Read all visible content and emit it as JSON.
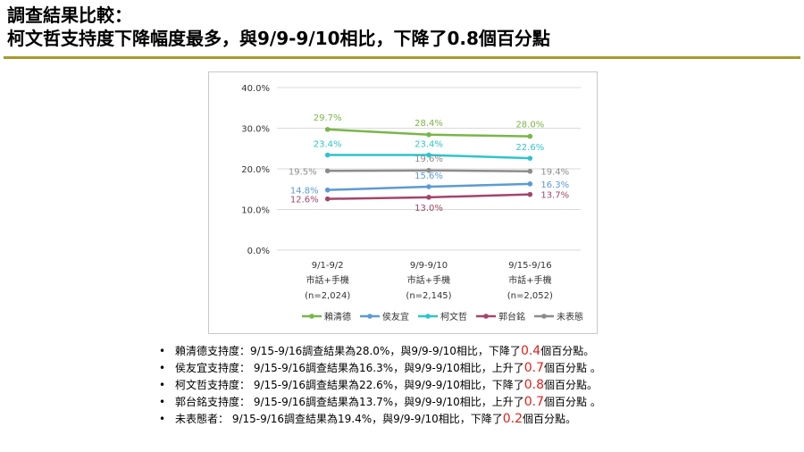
{
  "header": {
    "title_line1": "調查結果比較：",
    "title_line2": "柯文哲支持度下降幅度最多，與9/9-9/10相比，下降了0.8個百分點"
  },
  "theme": {
    "rule_color": "#a89a2e",
    "highlight_color": "#e0201a"
  },
  "chart_data": {
    "type": "line",
    "categories": [
      [
        "9/1-9/2",
        "市話+手機",
        "(n=2,024)"
      ],
      [
        "9/9-9/10",
        "市話+手機",
        "(n=2,145)"
      ],
      [
        "9/15-9/16",
        "市話+手機",
        "(n=2,052)"
      ]
    ],
    "ylim": [
      0,
      40
    ],
    "yticks": [
      "0.0%",
      "10.0%",
      "20.0%",
      "30.0%",
      "40.0%"
    ],
    "grid": true,
    "legend_position": "bottom",
    "series": [
      {
        "name": "賴清德",
        "color": "#7ab648",
        "values": [
          29.7,
          28.4,
          28.0
        ],
        "labels": [
          "29.7%",
          "28.4%",
          "28.0%"
        ]
      },
      {
        "name": "侯友宜",
        "color": "#5b9bd5",
        "values": [
          14.8,
          15.6,
          16.3
        ],
        "labels": [
          "14.8%",
          "15.6%",
          "16.3%"
        ]
      },
      {
        "name": "柯文哲",
        "color": "#2fc4cc",
        "values": [
          23.4,
          23.4,
          22.6
        ],
        "labels": [
          "23.4%",
          "23.4%",
          "22.6%"
        ]
      },
      {
        "name": "郭台銘",
        "color": "#a3456b",
        "values": [
          12.6,
          13.0,
          13.7
        ],
        "labels": [
          "12.6%",
          "13.0%",
          "13.7%"
        ]
      },
      {
        "name": "未表態",
        "color": "#8c8c8c",
        "values": [
          19.5,
          19.6,
          19.4
        ],
        "labels": [
          "19.5%",
          "19.6%",
          "19.4%"
        ]
      }
    ]
  },
  "bullets": [
    {
      "prefix": "賴清德支持度：9/15-9/16調查結果為28.0%，與9/9-9/10相比，下降了",
      "highlight": "0.4",
      "suffix": "個百分點。"
    },
    {
      "prefix": "侯友宜支持度： 9/15-9/16調查結果為16.3%，與9/9-9/10相比，上升了",
      "highlight": "0.7",
      "suffix": "個百分點 。"
    },
    {
      "prefix": "柯文哲支持度： 9/15-9/16調查結果為22.6%，與9/9-9/10相比，下降了",
      "highlight": "0.8",
      "suffix": "個百分點。"
    },
    {
      "prefix": "郭台銘支持度： 9/15-9/16調查結果為13.7%，與9/9-9/10相比，上升了",
      "highlight": "0.7",
      "suffix": "個百分點 。"
    },
    {
      "prefix": "未表態者： 9/15-9/16調查結果為19.4%，與9/9-9/10相比，下降了",
      "highlight": "0.2",
      "suffix": "個百分點。"
    }
  ]
}
